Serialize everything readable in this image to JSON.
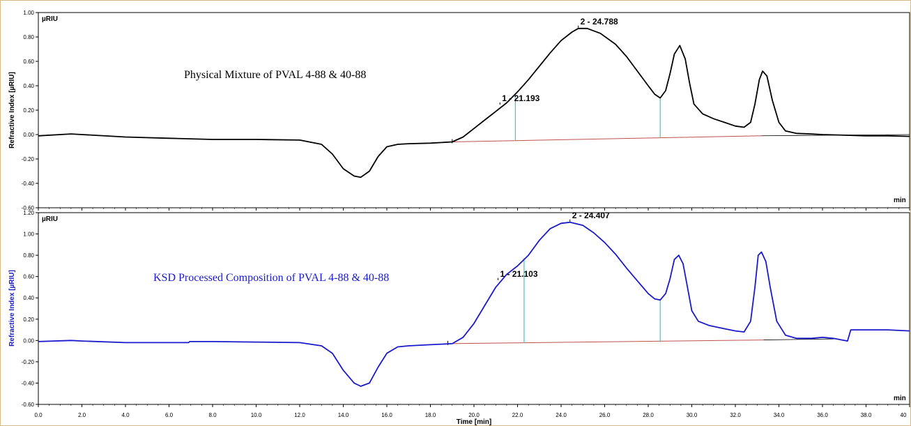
{
  "colors": {
    "trace_top": "#000000",
    "trace_bottom": "#1a1acc",
    "baseline_red": "#c0504d",
    "baseline_black": "#000000",
    "marker": "#33cccc",
    "frame": "#d8b98a"
  },
  "x_axis": {
    "label": "Time [min]",
    "unit": "min",
    "ticks": [
      "0.0",
      "2.0",
      "4.0",
      "6.0",
      "8.0",
      "10.0",
      "12.0",
      "14.0",
      "16.0",
      "18.0",
      "20.0",
      "22.0",
      "24.0",
      "26.0",
      "28.0",
      "30.0",
      "32.0",
      "34.0",
      "36.0",
      "38.0",
      "40"
    ]
  },
  "chart_data": [
    {
      "type": "line",
      "title": "Physical Mixture of PVAL 4-88 & 40-88",
      "unit": "µRIU",
      "ylabel": "Refractive Index [µRIU]",
      "ylim": [
        -0.6,
        1.0
      ],
      "yticks": [
        "1.00",
        "0.80",
        "0.60",
        "0.40",
        "0.20",
        "0.00",
        "-0.20",
        "-0.40",
        "-0.60"
      ],
      "xlim": [
        0,
        40
      ],
      "series": [
        {
          "x": [
            0,
            1.5,
            2,
            4,
            6,
            8,
            10,
            12,
            13,
            13.5,
            14,
            14.5,
            14.8,
            15.2,
            15.6,
            16,
            16.5,
            17,
            18,
            19,
            19.5,
            20,
            20.5,
            21,
            21.5,
            22,
            22.5,
            23,
            23.5,
            24,
            24.5,
            24.788,
            25.2,
            25.8,
            26.5,
            27,
            27.5,
            28,
            28.3,
            28.55,
            28.8,
            29,
            29.2,
            29.45,
            29.7,
            29.9,
            30.1,
            30.5,
            31,
            31.5,
            32,
            32.4,
            32.7,
            32.9,
            33.1,
            33.25,
            33.45,
            33.7,
            34,
            34.3,
            34.8,
            35.5,
            36,
            37,
            38,
            39,
            40
          ],
          "y": [
            -0.01,
            0.005,
            0.0,
            -0.02,
            -0.03,
            -0.04,
            -0.04,
            -0.045,
            -0.08,
            -0.16,
            -0.28,
            -0.34,
            -0.35,
            -0.3,
            -0.18,
            -0.1,
            -0.08,
            -0.075,
            -0.07,
            -0.06,
            -0.02,
            0.05,
            0.12,
            0.19,
            0.26,
            0.35,
            0.45,
            0.56,
            0.67,
            0.77,
            0.84,
            0.87,
            0.87,
            0.83,
            0.74,
            0.64,
            0.52,
            0.4,
            0.33,
            0.3,
            0.36,
            0.5,
            0.66,
            0.73,
            0.62,
            0.42,
            0.25,
            0.17,
            0.13,
            0.1,
            0.07,
            0.06,
            0.1,
            0.25,
            0.45,
            0.52,
            0.48,
            0.28,
            0.1,
            0.03,
            0.01,
            0.005,
            0.0,
            -0.005,
            -0.01,
            -0.01,
            -0.015
          ]
        }
      ],
      "peaks": [
        {
          "label": "1 - 21.193",
          "x": 21.193,
          "y": 0.24
        },
        {
          "label": "2 - 24.788",
          "x": 24.788,
          "y": 0.87
        }
      ],
      "baseline": {
        "x": [
          19.0,
          33.2,
          40
        ],
        "y": [
          -0.06,
          -0.01,
          0.0
        ]
      },
      "markers": [
        {
          "x": 21.9,
          "y1": -0.045,
          "y2": 0.34
        },
        {
          "x": 28.55,
          "y1": -0.025,
          "y2": 0.3
        }
      ]
    },
    {
      "type": "line",
      "title": "KSD Processed Composition of PVAL 4-88 & 40-88",
      "unit": "µRIU",
      "ylabel": "Refractive Index [µRIU]",
      "ylim": [
        -0.6,
        1.2
      ],
      "yticks": [
        "1.20",
        "1.00",
        "0.80",
        "0.60",
        "0.40",
        "0.20",
        "0.00",
        "-0.20",
        "-0.40",
        "-0.60"
      ],
      "xlim": [
        0,
        40
      ],
      "series": [
        {
          "x": [
            0,
            1.5,
            2,
            4,
            6.9,
            6.95,
            7,
            8,
            10,
            12,
            13,
            13.5,
            14,
            14.5,
            14.8,
            15.2,
            15.6,
            16,
            16.5,
            17,
            18,
            19,
            19.5,
            20,
            20.5,
            21,
            21.5,
            22,
            22.5,
            23,
            23.5,
            24,
            24.407,
            25,
            25.5,
            26,
            26.5,
            27,
            27.5,
            28,
            28.3,
            28.55,
            28.8,
            29,
            29.2,
            29.4,
            29.6,
            29.8,
            30,
            30.3,
            30.8,
            31.5,
            32,
            32.4,
            32.7,
            32.9,
            33.05,
            33.2,
            33.4,
            33.6,
            33.9,
            34.3,
            34.8,
            35.5,
            36,
            36.5,
            37,
            37.15,
            37.3,
            38,
            39,
            40
          ],
          "y": [
            -0.01,
            0.0,
            -0.005,
            -0.02,
            -0.02,
            -0.01,
            -0.01,
            -0.01,
            -0.015,
            -0.02,
            -0.05,
            -0.12,
            -0.28,
            -0.4,
            -0.43,
            -0.4,
            -0.25,
            -0.12,
            -0.06,
            -0.05,
            -0.04,
            -0.03,
            0.03,
            0.16,
            0.33,
            0.5,
            0.62,
            0.7,
            0.8,
            0.94,
            1.05,
            1.1,
            1.11,
            1.08,
            1.01,
            0.92,
            0.81,
            0.68,
            0.56,
            0.44,
            0.39,
            0.38,
            0.44,
            0.58,
            0.76,
            0.8,
            0.72,
            0.5,
            0.28,
            0.18,
            0.14,
            0.11,
            0.09,
            0.08,
            0.18,
            0.5,
            0.8,
            0.83,
            0.74,
            0.5,
            0.18,
            0.05,
            0.02,
            0.02,
            0.03,
            0.02,
            0.0,
            -0.005,
            0.1,
            0.1,
            0.1,
            0.09
          ]
        }
      ],
      "peaks": [
        {
          "label": "1 - 21.103",
          "x": 21.103,
          "y": 0.56
        },
        {
          "label": "2 - 24.407",
          "x": 24.407,
          "y": 1.11
        }
      ],
      "baseline": {
        "x": [
          18.8,
          33.3,
          36.6
        ],
        "y": [
          -0.03,
          0.005,
          0.015
        ]
      },
      "markers": [
        {
          "x": 22.3,
          "y1": -0.025,
          "y2": 0.77
        },
        {
          "x": 28.55,
          "y1": -0.015,
          "y2": 0.38
        }
      ]
    }
  ]
}
